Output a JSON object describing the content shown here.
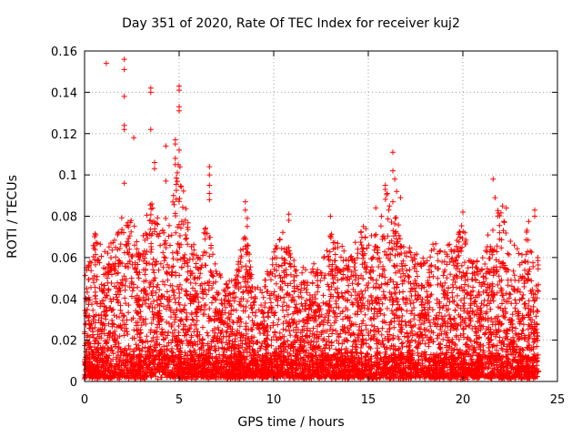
{
  "chart_data": {
    "type": "scatter",
    "title": "Day 351 of 2020, Rate Of TEC Index for receiver kuj2",
    "xlabel": "GPS time / hours",
    "ylabel": "ROTI / TECUs",
    "xlim": [
      0,
      25
    ],
    "ylim": [
      0,
      0.16
    ],
    "xticks": [
      "0",
      "5",
      "10",
      "15",
      "20",
      "25"
    ],
    "yticks": [
      "0",
      "0.02",
      "0.04",
      "0.06",
      "0.08",
      "0.1",
      "0.12",
      "0.14",
      "0.16"
    ],
    "grid": true,
    "marker": "plus",
    "color": "#ff0000",
    "data_x_range": [
      0,
      24
    ],
    "envelope": [
      {
        "x": 0.0,
        "y": 0.052
      },
      {
        "x": 0.5,
        "y": 0.075
      },
      {
        "x": 1.0,
        "y": 0.062
      },
      {
        "x": 1.5,
        "y": 0.07
      },
      {
        "x": 2.0,
        "y": 0.08
      },
      {
        "x": 2.5,
        "y": 0.078
      },
      {
        "x": 3.0,
        "y": 0.068
      },
      {
        "x": 3.5,
        "y": 0.09
      },
      {
        "x": 4.0,
        "y": 0.075
      },
      {
        "x": 4.5,
        "y": 0.082
      },
      {
        "x": 5.0,
        "y": 0.11
      },
      {
        "x": 5.5,
        "y": 0.075
      },
      {
        "x": 6.0,
        "y": 0.06
      },
      {
        "x": 6.5,
        "y": 0.08
      },
      {
        "x": 7.0,
        "y": 0.052
      },
      {
        "x": 7.5,
        "y": 0.052
      },
      {
        "x": 8.0,
        "y": 0.052
      },
      {
        "x": 8.5,
        "y": 0.075
      },
      {
        "x": 9.0,
        "y": 0.045
      },
      {
        "x": 9.5,
        "y": 0.048
      },
      {
        "x": 10.0,
        "y": 0.065
      },
      {
        "x": 10.5,
        "y": 0.075
      },
      {
        "x": 11.0,
        "y": 0.06
      },
      {
        "x": 11.5,
        "y": 0.055
      },
      {
        "x": 12.0,
        "y": 0.058
      },
      {
        "x": 12.5,
        "y": 0.055
      },
      {
        "x": 13.0,
        "y": 0.072
      },
      {
        "x": 13.5,
        "y": 0.068
      },
      {
        "x": 14.0,
        "y": 0.06
      },
      {
        "x": 14.5,
        "y": 0.072
      },
      {
        "x": 15.0,
        "y": 0.08
      },
      {
        "x": 15.5,
        "y": 0.07
      },
      {
        "x": 16.0,
        "y": 0.095
      },
      {
        "x": 16.5,
        "y": 0.08
      },
      {
        "x": 17.0,
        "y": 0.068
      },
      {
        "x": 17.5,
        "y": 0.062
      },
      {
        "x": 18.0,
        "y": 0.06
      },
      {
        "x": 18.5,
        "y": 0.07
      },
      {
        "x": 19.0,
        "y": 0.068
      },
      {
        "x": 19.5,
        "y": 0.066
      },
      {
        "x": 20.0,
        "y": 0.078
      },
      {
        "x": 20.5,
        "y": 0.058
      },
      {
        "x": 21.0,
        "y": 0.06
      },
      {
        "x": 21.5,
        "y": 0.08
      },
      {
        "x": 22.0,
        "y": 0.085
      },
      {
        "x": 22.5,
        "y": 0.068
      },
      {
        "x": 23.0,
        "y": 0.065
      },
      {
        "x": 23.5,
        "y": 0.078
      },
      {
        "x": 24.0,
        "y": 0.06
      }
    ],
    "outliers": [
      {
        "x": 1.15,
        "y": 0.154
      },
      {
        "x": 2.1,
        "y": 0.156
      },
      {
        "x": 2.1,
        "y": 0.151
      },
      {
        "x": 2.1,
        "y": 0.138
      },
      {
        "x": 2.1,
        "y": 0.124
      },
      {
        "x": 2.1,
        "y": 0.122
      },
      {
        "x": 2.6,
        "y": 0.118
      },
      {
        "x": 2.1,
        "y": 0.096
      },
      {
        "x": 3.5,
        "y": 0.142
      },
      {
        "x": 3.5,
        "y": 0.14
      },
      {
        "x": 3.5,
        "y": 0.122
      },
      {
        "x": 3.7,
        "y": 0.106
      },
      {
        "x": 3.7,
        "y": 0.103
      },
      {
        "x": 4.3,
        "y": 0.114
      },
      {
        "x": 4.3,
        "y": 0.097
      },
      {
        "x": 4.8,
        "y": 0.117
      },
      {
        "x": 4.8,
        "y": 0.115
      },
      {
        "x": 4.8,
        "y": 0.108
      },
      {
        "x": 4.8,
        "y": 0.105
      },
      {
        "x": 4.9,
        "y": 0.101
      },
      {
        "x": 5.0,
        "y": 0.143
      },
      {
        "x": 5.0,
        "y": 0.141
      },
      {
        "x": 5.0,
        "y": 0.133
      },
      {
        "x": 5.0,
        "y": 0.131
      },
      {
        "x": 5.0,
        "y": 0.112
      },
      {
        "x": 6.6,
        "y": 0.104
      },
      {
        "x": 6.6,
        "y": 0.1
      },
      {
        "x": 6.6,
        "y": 0.095
      },
      {
        "x": 6.6,
        "y": 0.091
      },
      {
        "x": 6.6,
        "y": 0.088
      },
      {
        "x": 8.5,
        "y": 0.087
      },
      {
        "x": 8.5,
        "y": 0.083
      },
      {
        "x": 8.6,
        "y": 0.079
      },
      {
        "x": 8.6,
        "y": 0.075
      },
      {
        "x": 10.8,
        "y": 0.081
      },
      {
        "x": 10.8,
        "y": 0.078
      },
      {
        "x": 13.0,
        "y": 0.08
      },
      {
        "x": 15.4,
        "y": 0.084
      },
      {
        "x": 15.7,
        "y": 0.08
      },
      {
        "x": 15.9,
        "y": 0.095
      },
      {
        "x": 15.9,
        "y": 0.093
      },
      {
        "x": 16.0,
        "y": 0.091
      },
      {
        "x": 16.3,
        "y": 0.111
      },
      {
        "x": 16.3,
        "y": 0.102
      },
      {
        "x": 16.4,
        "y": 0.098
      },
      {
        "x": 16.5,
        "y": 0.092
      },
      {
        "x": 16.7,
        "y": 0.089
      },
      {
        "x": 16.3,
        "y": 0.087
      },
      {
        "x": 20.0,
        "y": 0.082
      },
      {
        "x": 21.6,
        "y": 0.098
      },
      {
        "x": 21.7,
        "y": 0.089
      },
      {
        "x": 22.1,
        "y": 0.085
      },
      {
        "x": 22.3,
        "y": 0.084
      },
      {
        "x": 23.8,
        "y": 0.083
      },
      {
        "x": 23.8,
        "y": 0.08
      }
    ]
  }
}
